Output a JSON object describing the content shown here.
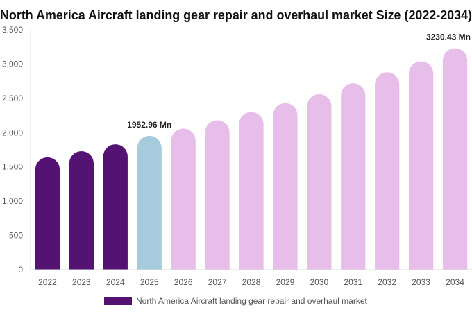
{
  "chart_data": {
    "type": "bar",
    "title": "North America Aircraft landing gear repair and overhaul market Size (2022-2034)",
    "xlabel": "",
    "ylabel": "",
    "categories": [
      "2022",
      "2023",
      "2024",
      "2025",
      "2026",
      "2027",
      "2028",
      "2029",
      "2030",
      "2031",
      "2032",
      "2033",
      "2034"
    ],
    "series": [
      {
        "name": "North America Aircraft landing gear repair and overhaul market",
        "values": [
          1640,
          1730,
          1830,
          1952.96,
          2060,
          2180,
          2300,
          2430,
          2560,
          2720,
          2880,
          3040,
          3230.43
        ]
      }
    ],
    "bar_colors": [
      "#541273",
      "#541273",
      "#541273",
      "#a5cbdd",
      "#e7bde9",
      "#e7bde9",
      "#e7bde9",
      "#e7bde9",
      "#e7bde9",
      "#e7bde9",
      "#e7bde9",
      "#e7bde9",
      "#e7bde9"
    ],
    "legend_color": "#541273",
    "ylim": [
      0,
      3500
    ],
    "yticks": [
      0,
      500,
      1000,
      1500,
      2000,
      2500,
      3000,
      3500
    ],
    "ytick_labels": [
      "0",
      "500",
      "1,000",
      "1,500",
      "2,000",
      "2,500",
      "3,000",
      "3,500"
    ],
    "data_labels": [
      {
        "index": 3,
        "text": "1952.96 Mn"
      },
      {
        "index": 12,
        "text": "3230.43 Mn"
      }
    ],
    "legend_position": "bottom-center",
    "grid": false
  }
}
